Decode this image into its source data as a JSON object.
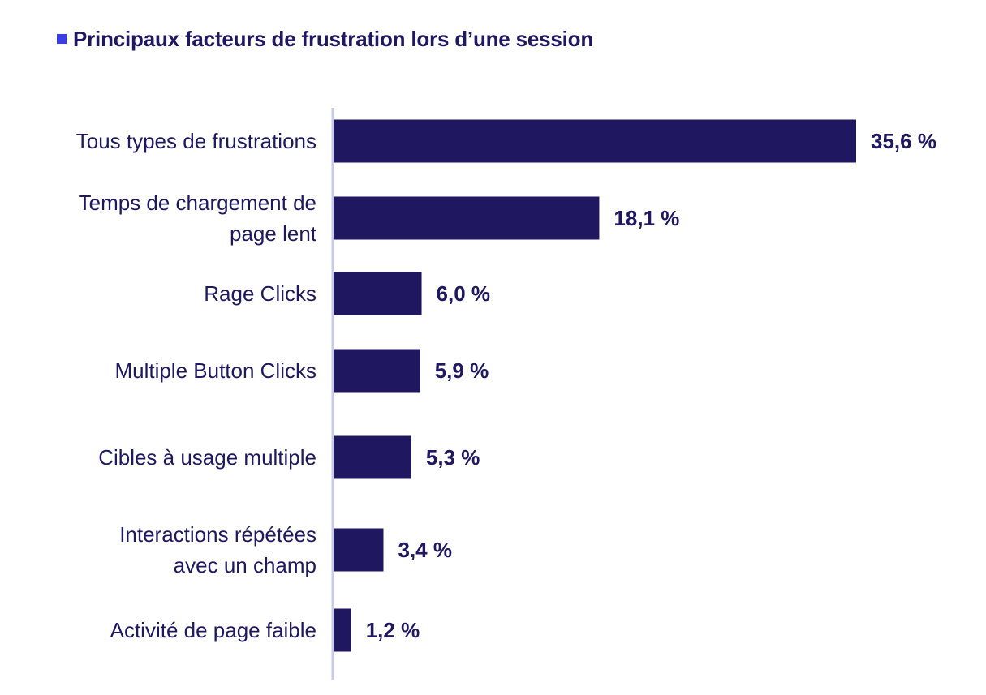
{
  "colors": {
    "bar": "#1f1760",
    "text": "#1f1760",
    "axis": "#c9cbe6",
    "title_marker": "#3b3fe0"
  },
  "chart_data": {
    "type": "bar",
    "orientation": "horizontal",
    "title": "Principaux facteurs de frustration lors d’une session",
    "xlabel": "",
    "ylabel": "",
    "xlim": [
      0,
      35.6
    ],
    "grid": false,
    "legend": "none",
    "categories": [
      [
        "Tous types de frustrations"
      ],
      [
        "Temps de chargement de",
        "page lent"
      ],
      [
        "Rage Clicks"
      ],
      [
        "Multiple Button Clicks"
      ],
      [
        "Cibles à usage multiple"
      ],
      [
        "Interactions répétées",
        "avec un champ"
      ],
      [
        "Activité de page faible"
      ]
    ],
    "values": [
      35.6,
      18.1,
      6.0,
      5.9,
      5.3,
      3.4,
      1.2
    ],
    "value_labels": [
      "35,6 %",
      "18,1 %",
      "6,0 %",
      "5,9 %",
      "5,3 %",
      "3,4 %",
      "1,2 %"
    ]
  }
}
